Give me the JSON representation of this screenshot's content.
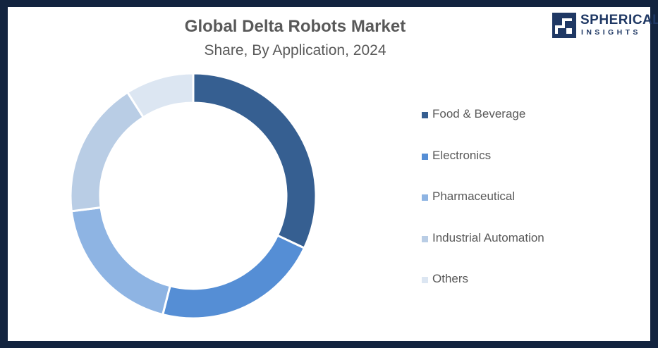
{
  "header": {
    "title": "Global Delta Robots Market",
    "subtitle": "Share, By Application, 2024"
  },
  "logo": {
    "word1": "SPHERICAL",
    "word2": "INSIGHTS",
    "color": "#1f3864"
  },
  "chart_data": {
    "type": "pie",
    "style": "donut",
    "title": "Global Delta Robots Market",
    "subtitle": "Share, By Application, 2024",
    "legend_position": "right",
    "categories": [
      "Food & Beverage",
      "Electronics",
      "Pharmaceutical",
      "Industrial Automation",
      "Others"
    ],
    "values": [
      32,
      22,
      19,
      18,
      9
    ],
    "unit": "%",
    "colors": [
      "#365f91",
      "#558ed5",
      "#8eb4e3",
      "#b9cde5",
      "#dce6f2"
    ]
  }
}
